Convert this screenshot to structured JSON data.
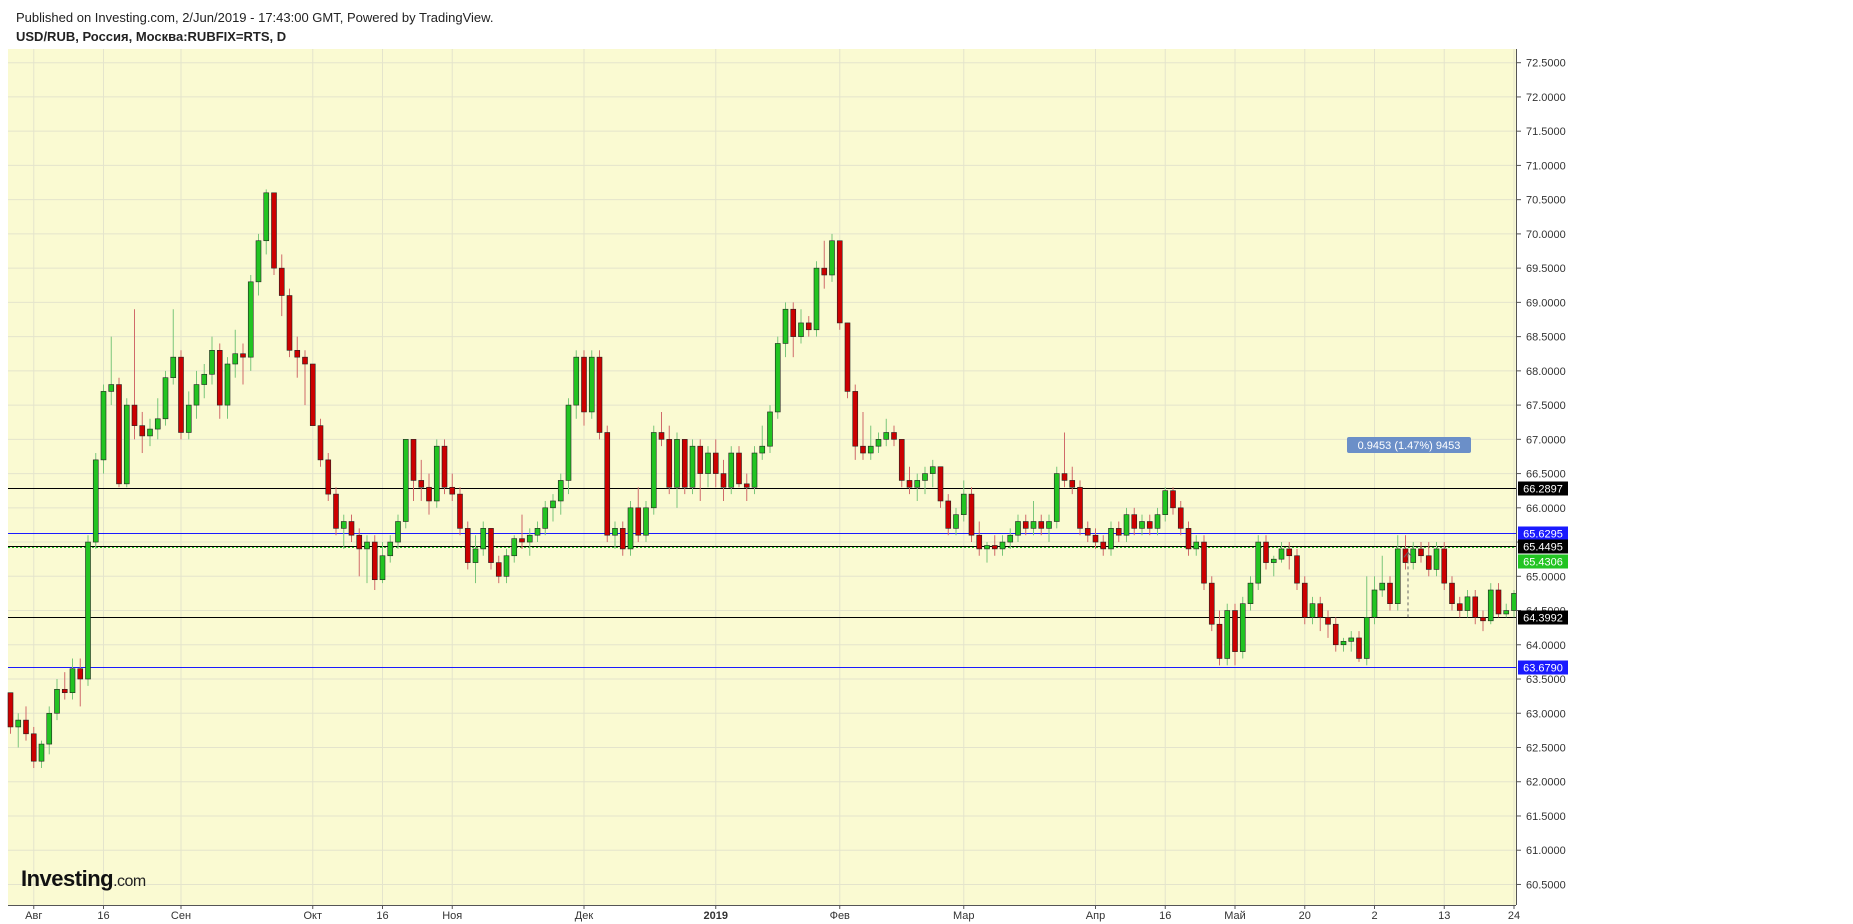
{
  "header": {
    "published": "Published on Investing.com, 2/Jun/2019 - 17:43:00 GMT, Powered by TradingView.",
    "symbol": "USD/RUB, Россия, Москва:RUBFIX=RTS, D"
  },
  "logo": {
    "name": "Investing",
    "suffix": ".com"
  },
  "colors": {
    "background": "#fafad2",
    "up": "#22c422",
    "down": "#cc0000",
    "grid": "#e4e4cc",
    "black_level": "#000000",
    "blue_level": "#1a1aff",
    "current_price": "#22c422",
    "measure_badge": "#6b8fc8"
  },
  "chart_data": {
    "type": "candlestick",
    "title": "USD/RUB, Россия, Москва:RUBFIX=RTS, D",
    "ylim": [
      60.2,
      72.7
    ],
    "y_ticks": [
      "60.5000",
      "61.0000",
      "61.5000",
      "62.0000",
      "62.5000",
      "63.0000",
      "63.5000",
      "64.0000",
      "64.5000",
      "65.0000",
      "65.5000",
      "66.0000",
      "66.5000",
      "67.0000",
      "67.5000",
      "68.0000",
      "68.5000",
      "69.0000",
      "69.5000",
      "70.0000",
      "70.5000",
      "71.0000",
      "71.5000",
      "72.0000",
      "72.5000"
    ],
    "x_ticks": [
      {
        "label": "Авг",
        "bar": 3
      },
      {
        "label": "16",
        "bar": 12
      },
      {
        "label": "Сен",
        "bar": 22
      },
      {
        "label": "Окт",
        "bar": 39
      },
      {
        "label": "16",
        "bar": 48
      },
      {
        "label": "Ноя",
        "bar": 57
      },
      {
        "label": "Дек",
        "bar": 74
      },
      {
        "label": "2019",
        "bar": 91
      },
      {
        "label": "Фев",
        "bar": 107
      },
      {
        "label": "Мар",
        "bar": 123
      },
      {
        "label": "Апр",
        "bar": 140
      },
      {
        "label": "16",
        "bar": 149
      },
      {
        "label": "Май",
        "bar": 158
      },
      {
        "label": "20",
        "bar": 167
      },
      {
        "label": "2",
        "bar": 176
      },
      {
        "label": "13",
        "bar": 185
      },
      {
        "label": "24",
        "bar": 194
      }
    ],
    "candles": [
      [
        63.3,
        63.3,
        62.7,
        62.8
      ],
      [
        62.8,
        63.0,
        62.5,
        62.9
      ],
      [
        62.9,
        63.1,
        62.6,
        62.7
      ],
      [
        62.7,
        62.8,
        62.2,
        62.3
      ],
      [
        62.3,
        62.6,
        62.2,
        62.55
      ],
      [
        62.55,
        63.1,
        62.4,
        63.0
      ],
      [
        63.0,
        63.5,
        62.9,
        63.35
      ],
      [
        63.35,
        63.6,
        63.2,
        63.3
      ],
      [
        63.3,
        63.8,
        63.2,
        63.65
      ],
      [
        63.65,
        63.8,
        63.1,
        63.5
      ],
      [
        63.5,
        65.6,
        63.4,
        65.5
      ],
      [
        65.5,
        66.8,
        65.4,
        66.7
      ],
      [
        66.7,
        67.8,
        66.5,
        67.7
      ],
      [
        67.7,
        68.5,
        67.5,
        67.8
      ],
      [
        67.8,
        67.9,
        66.3,
        66.35
      ],
      [
        66.35,
        67.6,
        66.3,
        67.5
      ],
      [
        67.5,
        68.9,
        67.0,
        67.2
      ],
      [
        67.2,
        67.4,
        66.8,
        67.05
      ],
      [
        67.05,
        67.3,
        66.9,
        67.15
      ],
      [
        67.15,
        67.6,
        67.0,
        67.3
      ],
      [
        67.3,
        68.0,
        67.2,
        67.9
      ],
      [
        67.9,
        68.9,
        67.8,
        68.2
      ],
      [
        68.2,
        68.3,
        67.0,
        67.1
      ],
      [
        67.1,
        67.7,
        67.0,
        67.5
      ],
      [
        67.5,
        68.0,
        67.3,
        67.8
      ],
      [
        67.8,
        68.1,
        67.6,
        67.95
      ],
      [
        67.95,
        68.5,
        67.8,
        68.3
      ],
      [
        68.3,
        68.4,
        67.3,
        67.5
      ],
      [
        67.5,
        68.2,
        67.3,
        68.1
      ],
      [
        68.1,
        68.6,
        67.9,
        68.25
      ],
      [
        68.25,
        68.4,
        67.8,
        68.2
      ],
      [
        68.2,
        69.4,
        68.0,
        69.3
      ],
      [
        69.3,
        70.0,
        69.1,
        69.9
      ],
      [
        69.9,
        70.65,
        69.7,
        70.6
      ],
      [
        70.6,
        70.6,
        69.4,
        69.5
      ],
      [
        69.5,
        69.7,
        68.8,
        69.1
      ],
      [
        69.1,
        69.2,
        68.2,
        68.3
      ],
      [
        68.3,
        68.5,
        67.9,
        68.2
      ],
      [
        68.2,
        68.3,
        67.5,
        68.1
      ],
      [
        68.1,
        68.1,
        67.2,
        67.2
      ],
      [
        67.2,
        67.3,
        66.6,
        66.7
      ],
      [
        66.7,
        66.8,
        66.1,
        66.2
      ],
      [
        66.2,
        66.3,
        65.6,
        65.7
      ],
      [
        65.7,
        65.9,
        65.4,
        65.8
      ],
      [
        65.8,
        65.9,
        65.5,
        65.6
      ],
      [
        65.6,
        65.7,
        65.0,
        65.4
      ],
      [
        65.4,
        65.6,
        64.9,
        65.5
      ],
      [
        65.5,
        65.6,
        64.8,
        64.95
      ],
      [
        64.95,
        65.5,
        64.9,
        65.3
      ],
      [
        65.3,
        65.6,
        65.2,
        65.5
      ],
      [
        65.5,
        65.9,
        65.4,
        65.8
      ],
      [
        65.8,
        67.0,
        65.7,
        67.0
      ],
      [
        67.0,
        67.0,
        66.1,
        66.4
      ],
      [
        66.4,
        66.7,
        66.1,
        66.3
      ],
      [
        66.3,
        66.5,
        65.9,
        66.1
      ],
      [
        66.1,
        67.0,
        66.0,
        66.9
      ],
      [
        66.9,
        67.0,
        66.2,
        66.3
      ],
      [
        66.3,
        66.5,
        66.1,
        66.2
      ],
      [
        66.2,
        66.3,
        65.6,
        65.7
      ],
      [
        65.7,
        65.8,
        65.1,
        65.2
      ],
      [
        65.2,
        65.6,
        64.9,
        65.4
      ],
      [
        65.4,
        65.8,
        65.3,
        65.7
      ],
      [
        65.7,
        65.7,
        65.1,
        65.2
      ],
      [
        65.2,
        65.3,
        64.9,
        65.0
      ],
      [
        65.0,
        65.4,
        64.9,
        65.3
      ],
      [
        65.3,
        65.6,
        65.2,
        65.55
      ],
      [
        65.55,
        65.9,
        65.4,
        65.5
      ],
      [
        65.5,
        65.7,
        65.3,
        65.6
      ],
      [
        65.6,
        65.8,
        65.5,
        65.7
      ],
      [
        65.7,
        66.1,
        65.6,
        66.0
      ],
      [
        66.0,
        66.2,
        65.8,
        66.1
      ],
      [
        66.1,
        66.5,
        65.9,
        66.4
      ],
      [
        66.4,
        67.6,
        66.2,
        67.5
      ],
      [
        67.5,
        68.3,
        67.3,
        68.2
      ],
      [
        68.2,
        68.3,
        67.2,
        67.4
      ],
      [
        67.4,
        68.3,
        67.3,
        68.2
      ],
      [
        68.2,
        68.3,
        67.0,
        67.1
      ],
      [
        67.1,
        67.2,
        65.5,
        65.6
      ],
      [
        65.6,
        65.8,
        65.4,
        65.7
      ],
      [
        65.7,
        65.8,
        65.3,
        65.4
      ],
      [
        65.4,
        66.1,
        65.3,
        66.0
      ],
      [
        66.0,
        66.3,
        65.5,
        65.6
      ],
      [
        65.6,
        66.1,
        65.5,
        66.0
      ],
      [
        66.0,
        67.2,
        65.9,
        67.1
      ],
      [
        67.1,
        67.4,
        66.9,
        67.0
      ],
      [
        67.0,
        67.2,
        66.2,
        66.3
      ],
      [
        66.3,
        67.1,
        66.0,
        67.0
      ],
      [
        67.0,
        67.0,
        66.2,
        66.3
      ],
      [
        66.3,
        67.0,
        66.2,
        66.9
      ],
      [
        66.9,
        67.0,
        66.1,
        66.5
      ],
      [
        66.5,
        66.9,
        66.3,
        66.8
      ],
      [
        66.8,
        67.0,
        66.3,
        66.5
      ],
      [
        66.5,
        66.7,
        66.1,
        66.3
      ],
      [
        66.3,
        66.9,
        66.2,
        66.8
      ],
      [
        66.8,
        66.9,
        66.3,
        66.35
      ],
      [
        66.35,
        66.5,
        66.1,
        66.3
      ],
      [
        66.3,
        66.9,
        66.2,
        66.8
      ],
      [
        66.8,
        67.2,
        66.7,
        66.9
      ],
      [
        66.9,
        67.5,
        66.8,
        67.4
      ],
      [
        67.4,
        68.5,
        67.3,
        68.4
      ],
      [
        68.4,
        69.0,
        68.2,
        68.9
      ],
      [
        68.9,
        69.0,
        68.2,
        68.5
      ],
      [
        68.5,
        68.9,
        68.4,
        68.7
      ],
      [
        68.7,
        68.8,
        68.5,
        68.6
      ],
      [
        68.6,
        69.6,
        68.5,
        69.5
      ],
      [
        69.5,
        69.9,
        69.2,
        69.4
      ],
      [
        69.4,
        70.0,
        69.3,
        69.9
      ],
      [
        69.9,
        69.9,
        68.6,
        68.7
      ],
      [
        68.7,
        68.7,
        67.6,
        67.7
      ],
      [
        67.7,
        67.8,
        66.7,
        66.9
      ],
      [
        66.9,
        67.4,
        66.7,
        66.8
      ],
      [
        66.8,
        67.2,
        66.7,
        66.9
      ],
      [
        66.9,
        67.1,
        66.8,
        67.0
      ],
      [
        67.0,
        67.3,
        66.9,
        67.1
      ],
      [
        67.1,
        67.2,
        66.9,
        67.0
      ],
      [
        67.0,
        67.0,
        66.3,
        66.4
      ],
      [
        66.4,
        66.6,
        66.2,
        66.3
      ],
      [
        66.3,
        66.5,
        66.1,
        66.4
      ],
      [
        66.4,
        66.6,
        66.2,
        66.5
      ],
      [
        66.5,
        66.7,
        66.3,
        66.6
      ],
      [
        66.6,
        66.6,
        66.0,
        66.1
      ],
      [
        66.1,
        66.2,
        65.6,
        65.7
      ],
      [
        65.7,
        66.0,
        65.6,
        65.9
      ],
      [
        65.9,
        66.4,
        65.8,
        66.2
      ],
      [
        66.2,
        66.3,
        65.5,
        65.6
      ],
      [
        65.6,
        65.8,
        65.3,
        65.4
      ],
      [
        65.4,
        65.5,
        65.2,
        65.45
      ],
      [
        65.45,
        65.6,
        65.3,
        65.4
      ],
      [
        65.4,
        65.6,
        65.3,
        65.5
      ],
      [
        65.5,
        65.7,
        65.4,
        65.6
      ],
      [
        65.6,
        65.9,
        65.5,
        65.8
      ],
      [
        65.8,
        65.9,
        65.6,
        65.7
      ],
      [
        65.7,
        66.1,
        65.6,
        65.8
      ],
      [
        65.8,
        65.9,
        65.6,
        65.7
      ],
      [
        65.7,
        65.9,
        65.5,
        65.8
      ],
      [
        65.8,
        66.6,
        65.7,
        66.5
      ],
      [
        66.5,
        67.1,
        66.3,
        66.4
      ],
      [
        66.4,
        66.6,
        66.2,
        66.3
      ],
      [
        66.3,
        66.4,
        65.6,
        65.7
      ],
      [
        65.7,
        65.8,
        65.5,
        65.6
      ],
      [
        65.6,
        65.7,
        65.4,
        65.5
      ],
      [
        65.5,
        65.6,
        65.3,
        65.4
      ],
      [
        65.4,
        65.8,
        65.3,
        65.7
      ],
      [
        65.7,
        65.8,
        65.5,
        65.6
      ],
      [
        65.6,
        66.0,
        65.5,
        65.9
      ],
      [
        65.9,
        66.0,
        65.6,
        65.7
      ],
      [
        65.7,
        65.9,
        65.6,
        65.8
      ],
      [
        65.8,
        65.9,
        65.6,
        65.7
      ],
      [
        65.7,
        66.0,
        65.6,
        65.9
      ],
      [
        65.9,
        66.3,
        65.8,
        66.25
      ],
      [
        66.25,
        66.3,
        65.9,
        66.0
      ],
      [
        66.0,
        66.1,
        65.6,
        65.7
      ],
      [
        65.7,
        65.8,
        65.3,
        65.4
      ],
      [
        65.4,
        65.6,
        65.3,
        65.5
      ],
      [
        65.5,
        65.6,
        64.8,
        64.9
      ],
      [
        64.9,
        65.0,
        64.2,
        64.3
      ],
      [
        64.3,
        64.5,
        63.7,
        63.8
      ],
      [
        63.8,
        64.6,
        63.7,
        64.5
      ],
      [
        64.5,
        64.6,
        63.7,
        63.9
      ],
      [
        63.9,
        64.7,
        63.8,
        64.6
      ],
      [
        64.6,
        65.0,
        64.5,
        64.9
      ],
      [
        64.9,
        65.6,
        64.8,
        65.5
      ],
      [
        65.5,
        65.6,
        65.1,
        65.2
      ],
      [
        65.2,
        65.3,
        65.0,
        65.25
      ],
      [
        65.25,
        65.5,
        65.2,
        65.4
      ],
      [
        65.4,
        65.5,
        65.1,
        65.3
      ],
      [
        65.3,
        65.4,
        64.8,
        64.9
      ],
      [
        64.9,
        65.0,
        64.3,
        64.4
      ],
      [
        64.4,
        64.7,
        64.3,
        64.6
      ],
      [
        64.6,
        64.7,
        64.2,
        64.4
      ],
      [
        64.4,
        64.5,
        64.1,
        64.3
      ],
      [
        64.3,
        64.4,
        63.9,
        64.0
      ],
      [
        64.0,
        64.1,
        63.9,
        64.05
      ],
      [
        64.05,
        64.2,
        63.9,
        64.1
      ],
      [
        64.1,
        64.2,
        63.75,
        63.8
      ],
      [
        63.8,
        65.0,
        63.7,
        64.4
      ],
      [
        64.4,
        65.0,
        64.3,
        64.8
      ],
      [
        64.8,
        65.3,
        64.7,
        64.9
      ],
      [
        64.9,
        65.0,
        64.5,
        64.6
      ],
      [
        64.6,
        65.6,
        64.5,
        65.4
      ],
      [
        65.4,
        65.6,
        65.1,
        65.2
      ],
      [
        65.2,
        65.5,
        65.1,
        65.4
      ],
      [
        65.4,
        65.5,
        65.2,
        65.3
      ],
      [
        65.3,
        65.5,
        65.0,
        65.1
      ],
      [
        65.1,
        65.5,
        65.0,
        65.4
      ],
      [
        65.4,
        65.5,
        64.8,
        64.9
      ],
      [
        64.9,
        65.0,
        64.5,
        64.6
      ],
      [
        64.6,
        64.7,
        64.4,
        64.5
      ],
      [
        64.5,
        64.8,
        64.4,
        64.7
      ],
      [
        64.7,
        64.8,
        64.3,
        64.4
      ],
      [
        64.4,
        64.5,
        64.2,
        64.35
      ],
      [
        64.35,
        64.9,
        64.3,
        64.8
      ],
      [
        64.8,
        64.9,
        64.4,
        64.45
      ],
      [
        64.45,
        64.6,
        64.4,
        64.5
      ],
      [
        64.5,
        64.8,
        64.4,
        64.75
      ],
      [
        64.75,
        65.1,
        64.7,
        65.0
      ],
      [
        65.0,
        65.5,
        64.9,
        65.45
      ]
    ],
    "levels": [
      {
        "value": 66.2897,
        "label": "66.2897",
        "color": "#000000"
      },
      {
        "value": 65.6295,
        "label": "65.6295",
        "color": "#1a1aff"
      },
      {
        "value": 65.4495,
        "label": "65.4495",
        "color": "#000000"
      },
      {
        "value": 64.3992,
        "label": "64.3992",
        "color": "#000000"
      },
      {
        "value": 63.679,
        "label": "63.6790",
        "color": "#1a1aff"
      }
    ],
    "current_price": {
      "value": 65.4306,
      "label": "65.4306"
    },
    "measure": {
      "text": "0.9453 (1.47%) 9453",
      "from": 64.4,
      "to": 65.35
    }
  }
}
